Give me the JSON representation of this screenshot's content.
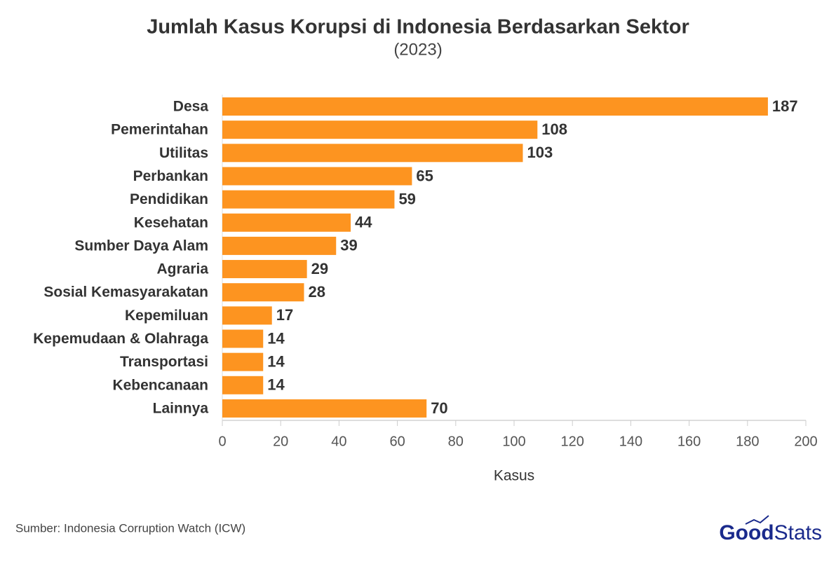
{
  "chart_data": {
    "type": "bar",
    "orientation": "horizontal",
    "title": "Jumlah Kasus Korupsi di Indonesia Berdasarkan Sektor",
    "subtitle": "(2023)",
    "categories": [
      "Desa",
      "Pemerintahan",
      "Utilitas",
      "Perbankan",
      "Pendidikan",
      "Kesehatan",
      "Sumber Daya Alam",
      "Agraria",
      "Sosial Kemasyarakatan",
      "Kepemiluan",
      "Kepemudaan & Olahraga",
      "Transportasi",
      "Kebencanaan",
      "Lainnya"
    ],
    "values": [
      187,
      108,
      103,
      65,
      59,
      44,
      39,
      29,
      28,
      17,
      14,
      14,
      14,
      70
    ],
    "color": "#fd9420",
    "xlabel": "Kasus",
    "xlim": [
      0,
      200
    ],
    "xticks": [
      0,
      20,
      40,
      60,
      80,
      100,
      120,
      140,
      160,
      180,
      200
    ],
    "grid": false
  },
  "footer": {
    "source": "Sumber: Indonesia Corruption Watch (ICW)",
    "logo": {
      "bold": "Good",
      "light": "Stats"
    }
  }
}
